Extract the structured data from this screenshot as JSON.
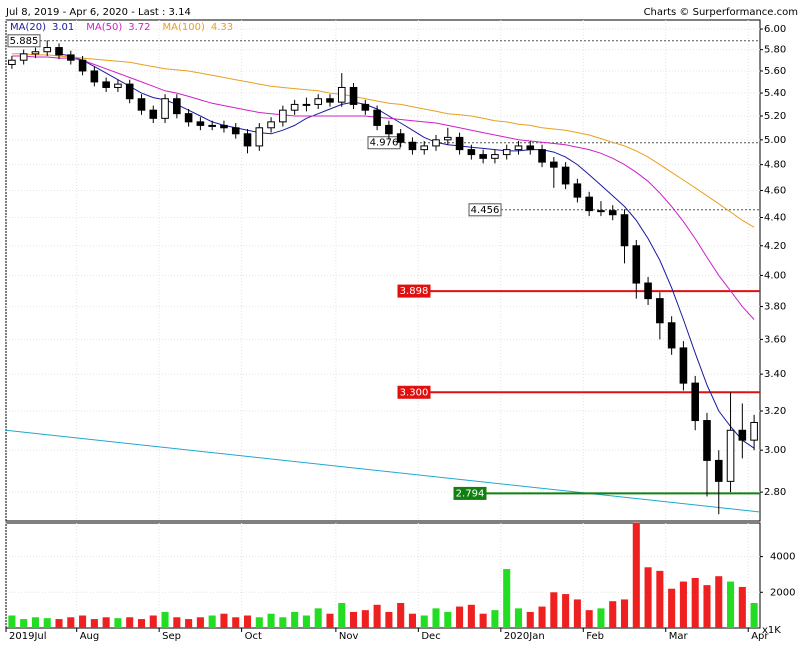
{
  "chart_data": {
    "type": "candlestick",
    "title": "Jul 8, 2019 - Apr 6, 2020 - Last : 3.14",
    "source": "Charts © Surperformance.com",
    "log_scale": true,
    "grid": true,
    "xlim": [
      -0.5,
      63.5
    ],
    "xticks": [
      {
        "value": 0,
        "label": "2019Jul"
      },
      {
        "value": 6,
        "label": "Aug"
      },
      {
        "value": 13,
        "label": "Sep"
      },
      {
        "value": 20,
        "label": "Oct"
      },
      {
        "value": 28,
        "label": "Nov"
      },
      {
        "value": 35,
        "label": "Dec"
      },
      {
        "value": 42,
        "label": "2020Jan"
      },
      {
        "value": 49,
        "label": "Feb"
      },
      {
        "value": 56,
        "label": "Mar"
      },
      {
        "value": 63,
        "label": "Apr"
      }
    ],
    "ylim": [
      2.67,
      6.09
    ],
    "yticks": [
      {
        "value": 2.8,
        "label": "2.80"
      },
      {
        "value": 3,
        "label": "3.00"
      },
      {
        "value": 3.2,
        "label": "3.20"
      },
      {
        "value": 3.4,
        "label": "3.40"
      },
      {
        "value": 3.6,
        "label": "3.60"
      },
      {
        "value": 3.8,
        "label": "3.80"
      },
      {
        "value": 4,
        "label": "4.00"
      },
      {
        "value": 4.2,
        "label": "4.20"
      },
      {
        "value": 4.4,
        "label": "4.40"
      },
      {
        "value": 4.6,
        "label": "4.60"
      },
      {
        "value": 4.8,
        "label": "4.80"
      },
      {
        "value": 5,
        "label": "5.00"
      },
      {
        "value": 5.2,
        "label": "5.20"
      },
      {
        "value": 5.4,
        "label": "5.40"
      },
      {
        "value": 5.6,
        "label": "5.60"
      },
      {
        "value": 5.8,
        "label": "5.80"
      },
      {
        "value": 6,
        "label": "6.00"
      }
    ],
    "candle_color": "#000000",
    "open": [
      5.66,
      5.7,
      5.76,
      5.78,
      5.82,
      5.75,
      5.7,
      5.6,
      5.5,
      5.45,
      5.48,
      5.35,
      5.25,
      5.18,
      5.35,
      5.22,
      5.15,
      5.12,
      5.12,
      5.1,
      5.05,
      4.95,
      5.1,
      5.15,
      5.25,
      5.3,
      5.3,
      5.35,
      5.32,
      5.45,
      5.3,
      5.25,
      5.12,
      5.05,
      4.98,
      4.92,
      4.95,
      5.0,
      5.02,
      4.92,
      4.88,
      4.85,
      4.88,
      4.92,
      4.95,
      4.92,
      4.82,
      4.78,
      4.65,
      4.55,
      4.45,
      4.45,
      4.42,
      4.2,
      3.95,
      3.85,
      3.7,
      3.55,
      3.35,
      3.15,
      2.95,
      2.85,
      3.1,
      3.05
    ],
    "high": [
      5.74,
      5.8,
      5.82,
      5.89,
      5.86,
      5.79,
      5.74,
      5.64,
      5.54,
      5.52,
      5.52,
      5.39,
      5.29,
      5.39,
      5.39,
      5.26,
      5.19,
      5.16,
      5.16,
      5.14,
      5.09,
      5.14,
      5.19,
      5.29,
      5.34,
      5.36,
      5.39,
      5.39,
      5.58,
      5.49,
      5.34,
      5.29,
      5.16,
      5.09,
      5.02,
      4.99,
      5.04,
      5.1,
      5.06,
      4.96,
      4.92,
      4.92,
      4.96,
      4.99,
      4.99,
      4.96,
      4.86,
      4.82,
      4.69,
      4.59,
      4.52,
      4.49,
      4.46,
      4.24,
      3.99,
      3.89,
      3.74,
      3.59,
      3.39,
      3.19,
      3.0,
      3.3,
      3.24,
      3.18
    ],
    "low": [
      5.62,
      5.66,
      5.72,
      5.74,
      5.71,
      5.66,
      5.56,
      5.46,
      5.41,
      5.41,
      5.31,
      5.21,
      5.14,
      5.14,
      5.18,
      5.11,
      5.08,
      5.08,
      5.06,
      5.01,
      4.89,
      4.91,
      5.06,
      5.11,
      5.21,
      5.24,
      5.26,
      5.28,
      5.28,
      5.26,
      5.21,
      5.08,
      5.01,
      4.94,
      4.88,
      4.88,
      4.91,
      4.96,
      4.88,
      4.84,
      4.81,
      4.81,
      4.84,
      4.88,
      4.88,
      4.78,
      4.62,
      4.61,
      4.51,
      4.41,
      4.41,
      4.38,
      4.08,
      3.85,
      3.81,
      3.6,
      3.51,
      3.31,
      3.1,
      2.78,
      2.7,
      2.8,
      2.96,
      3.0
    ],
    "close": [
      5.7,
      5.76,
      5.78,
      5.82,
      5.75,
      5.7,
      5.6,
      5.5,
      5.45,
      5.48,
      5.35,
      5.25,
      5.18,
      5.35,
      5.22,
      5.15,
      5.12,
      5.12,
      5.1,
      5.05,
      4.95,
      5.1,
      5.15,
      5.25,
      5.3,
      5.3,
      5.35,
      5.32,
      5.45,
      5.3,
      5.25,
      5.12,
      5.05,
      4.98,
      4.92,
      4.95,
      5.0,
      5.02,
      4.92,
      4.88,
      4.85,
      4.88,
      4.92,
      4.95,
      4.92,
      4.82,
      4.78,
      4.65,
      4.55,
      4.45,
      4.45,
      4.42,
      4.2,
      3.95,
      3.85,
      3.7,
      3.55,
      3.35,
      3.15,
      2.95,
      2.85,
      3.1,
      3.05,
      3.14
    ],
    "series": [
      {
        "name": "MA(20)",
        "last": 3.01,
        "color": "#1a1aa0",
        "values": [
          null,
          null,
          null,
          null,
          5.76,
          5.74,
          5.7,
          5.64,
          5.58,
          5.52,
          5.46,
          5.4,
          5.36,
          5.34,
          5.3,
          5.25,
          5.2,
          5.15,
          5.12,
          5.1,
          5.08,
          5.06,
          5.05,
          5.08,
          5.12,
          5.18,
          5.22,
          5.26,
          5.3,
          5.32,
          5.3,
          5.26,
          5.2,
          5.14,
          5.08,
          5.02,
          4.98,
          4.96,
          4.95,
          4.94,
          4.93,
          4.92,
          4.91,
          4.91,
          4.92,
          4.92,
          4.9,
          4.86,
          4.8,
          4.72,
          4.64,
          4.56,
          4.48,
          4.38,
          4.25,
          4.1,
          3.92,
          3.72,
          3.52,
          3.34,
          3.2,
          3.12,
          3.05,
          3.01
        ]
      },
      {
        "name": "MA(50)",
        "last": 3.72,
        "color": "#d020c8",
        "values": [
          5.74,
          5.74,
          5.73,
          5.73,
          5.72,
          5.72,
          5.7,
          5.66,
          5.62,
          5.58,
          5.54,
          5.5,
          5.46,
          5.42,
          5.4,
          5.37,
          5.34,
          5.31,
          5.29,
          5.27,
          5.25,
          5.23,
          5.22,
          5.21,
          5.2,
          5.2,
          5.2,
          5.2,
          5.2,
          5.2,
          5.2,
          5.19,
          5.18,
          5.17,
          5.16,
          5.15,
          5.14,
          5.12,
          5.1,
          5.08,
          5.06,
          5.04,
          5.02,
          5.0,
          4.99,
          4.98,
          4.97,
          4.96,
          4.94,
          4.92,
          4.89,
          4.85,
          4.8,
          4.74,
          4.67,
          4.58,
          4.48,
          4.37,
          4.25,
          4.12,
          4.0,
          3.9,
          3.8,
          3.72
        ]
      },
      {
        "name": "MA(100)",
        "last": 4.33,
        "color": "#e8a020",
        "values": [
          5.76,
          5.76,
          5.75,
          5.75,
          5.74,
          5.73,
          5.72,
          5.71,
          5.7,
          5.69,
          5.68,
          5.66,
          5.64,
          5.62,
          5.61,
          5.6,
          5.58,
          5.56,
          5.54,
          5.52,
          5.5,
          5.48,
          5.46,
          5.45,
          5.44,
          5.43,
          5.42,
          5.4,
          5.39,
          5.37,
          5.35,
          5.33,
          5.31,
          5.3,
          5.28,
          5.26,
          5.24,
          5.22,
          5.21,
          5.2,
          5.18,
          5.16,
          5.15,
          5.13,
          5.12,
          5.1,
          5.09,
          5.08,
          5.06,
          5.04,
          5.01,
          4.98,
          4.95,
          4.91,
          4.86,
          4.8,
          4.74,
          4.68,
          4.62,
          4.56,
          4.5,
          4.44,
          4.38,
          4.33
        ]
      }
    ],
    "levels": [
      {
        "value": 5.885,
        "label": "5.885",
        "color": "#555555",
        "style": "dotted"
      },
      {
        "value": 4.976,
        "label": "4.976",
        "color": "#555555",
        "style": "dotted"
      },
      {
        "value": 4.456,
        "label": "4.456",
        "color": "#555555",
        "style": "dotted"
      },
      {
        "value": 3.898,
        "label": "3.898",
        "color": "#e01010",
        "style": "solid"
      },
      {
        "value": 3.3,
        "label": "3.300",
        "color": "#e01010",
        "style": "solid"
      },
      {
        "value": 2.794,
        "label": "2.794",
        "color": "#108010",
        "style": "solid"
      }
    ],
    "trendline": {
      "values": [
        3.1,
        2.71
      ],
      "color": "#20a8d0"
    },
    "volume": {
      "unit": "x1K",
      "up_color": "#22dd22",
      "down_color": "#ee2020",
      "ylim": [
        0,
        5880
      ],
      "yticks": [
        2000,
        4000
      ],
      "values": [
        700,
        500,
        600,
        550,
        500,
        600,
        700,
        500,
        600,
        550,
        600,
        500,
        700,
        900,
        600,
        500,
        600,
        700,
        800,
        600,
        700,
        600,
        800,
        600,
        900,
        700,
        1100,
        800,
        1400,
        900,
        1000,
        1300,
        900,
        1400,
        800,
        700,
        1100,
        900,
        1200,
        1300,
        800,
        1000,
        3300,
        1100,
        900,
        1200,
        2000,
        1900,
        1600,
        1000,
        1100,
        1500,
        1600,
        5900,
        3400,
        3200,
        2200,
        2600,
        2800,
        2400,
        2900,
        2600,
        2300,
        1400
      ]
    }
  }
}
